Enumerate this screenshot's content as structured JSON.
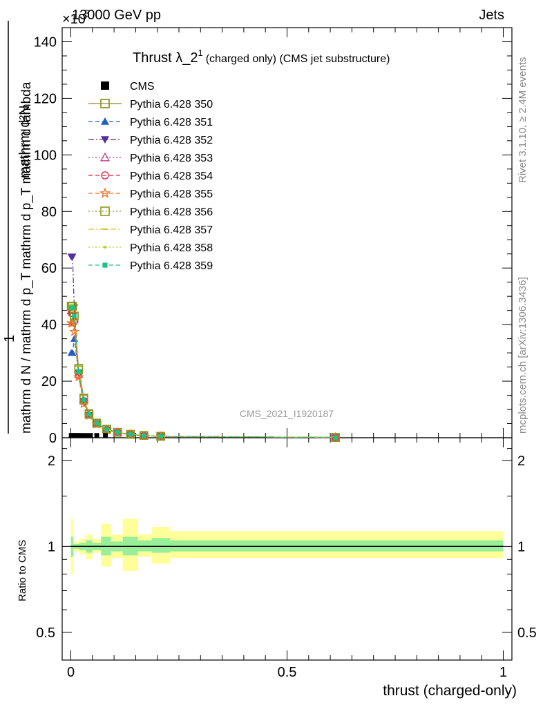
{
  "header": {
    "process": "13000 GeV pp",
    "category": "Jets",
    "exponent": "×10",
    "exponent_power": "3"
  },
  "plot_title": {
    "main": "Thrust λ_2",
    "superscript": "1",
    "detail": "(charged only) (CMS jet substructure)"
  },
  "ylabel_main": {
    "numerator": "mathrm d²N",
    "one": "1",
    "denominator": "mathrm d N / mathrm d p_T mathrm d p_T mathrm d lambda"
  },
  "ylabel_ratio": "Ratio to CMS",
  "xlabel": "thrust (charged-only)",
  "watermark": "CMS_2021_I1920187",
  "side_text": {
    "rivet": "Rivet 3.1.10, ≥ 2.4M events",
    "mcplots": "mcplots.cern.ch [arXiv:1306.3436]"
  },
  "legend": [
    {
      "label": "CMS",
      "color": "#000000",
      "marker": "square-filled",
      "line": "none"
    },
    {
      "label": "Pythia 6.428 350",
      "color": "#8b8b1a",
      "marker": "square-open",
      "line": "solid"
    },
    {
      "label": "Pythia 6.428 351",
      "color": "#1f5fbf",
      "marker": "triangle-up-filled",
      "line": "dashed"
    },
    {
      "label": "Pythia 6.428 352",
      "color": "#5a2ca0",
      "marker": "triangle-down-filled",
      "line": "dashdot"
    },
    {
      "label": "Pythia 6.428 353",
      "color": "#c0408a",
      "marker": "triangle-up-open",
      "line": "dotted"
    },
    {
      "label": "Pythia 6.428 354",
      "color": "#e0203a",
      "marker": "circle-open",
      "line": "dashed"
    },
    {
      "label": "Pythia 6.428 355",
      "color": "#f07020",
      "marker": "star-open",
      "line": "dashed"
    },
    {
      "label": "Pythia 6.428 356",
      "color": "#8b9a1a",
      "marker": "square-open",
      "line": "dotted"
    },
    {
      "label": "Pythia 6.428 357",
      "color": "#d8c020",
      "marker": "dash",
      "line": "dashdot"
    },
    {
      "label": "Pythia 6.428 358",
      "color": "#b8d020",
      "marker": "dot",
      "line": "dotted"
    },
    {
      "label": "Pythia 6.428 359",
      "color": "#20c08a",
      "marker": "square-filled-small",
      "line": "dashed"
    }
  ],
  "chart_data": [
    {
      "type": "line",
      "panel": "main",
      "xlim": [
        -0.02,
        1.02
      ],
      "ylim": [
        0,
        145000
      ],
      "y_scale_note": "×10^3",
      "y_ticks": [
        0,
        20000,
        40000,
        60000,
        80000,
        100000,
        120000,
        140000
      ],
      "y_tick_labels": [
        "0",
        "20",
        "40",
        "60",
        "80",
        "100",
        "120",
        "140"
      ],
      "cms": {
        "x": [
          0.001,
          0.004,
          0.008,
          0.013,
          0.018,
          0.025,
          0.035,
          0.045,
          0.06,
          0.08
        ],
        "y": [
          300,
          300,
          300,
          300,
          300,
          300,
          300,
          300,
          300,
          300
        ]
      },
      "x": [
        0.001,
        0.004,
        0.008,
        0.018,
        0.03,
        0.042,
        0.06,
        0.083,
        0.108,
        0.138,
        0.169,
        0.208,
        0.612
      ],
      "series": [
        {
          "name": "Pythia 6.428 350",
          "values": [
            46500,
            46500,
            43000,
            24500,
            14000,
            8500,
            5200,
            3000,
            1900,
            1200,
            800,
            500,
            100
          ]
        },
        {
          "name": "Pythia 6.428 351",
          "values": [
            30000,
            30000,
            35000,
            23000,
            13000,
            8000,
            5000,
            2900,
            1800,
            1100,
            750,
            480,
            100
          ]
        },
        {
          "name": "Pythia 6.428 352",
          "values": [
            64000,
            64000,
            46000,
            23000,
            13000,
            8000,
            5000,
            2900,
            1800,
            1100,
            750,
            480,
            100
          ]
        },
        {
          "name": "Pythia 6.428 353",
          "values": [
            45000,
            45000,
            42000,
            22500,
            13000,
            8000,
            5000,
            2900,
            1800,
            1100,
            750,
            480,
            100
          ]
        },
        {
          "name": "Pythia 6.428 354",
          "values": [
            44000,
            44000,
            41000,
            22000,
            13000,
            8000,
            5000,
            2900,
            1800,
            1100,
            750,
            480,
            100
          ]
        },
        {
          "name": "Pythia 6.428 355",
          "values": [
            40500,
            40500,
            37500,
            21500,
            12000,
            7800,
            4800,
            2800,
            1700,
            1100,
            750,
            480,
            100
          ]
        },
        {
          "name": "Pythia 6.428 356",
          "values": [
            46500,
            46500,
            43000,
            24000,
            13500,
            8300,
            5100,
            3000,
            1900,
            1200,
            800,
            500,
            100
          ]
        },
        {
          "name": "Pythia 6.428 357",
          "values": [
            46000,
            46000,
            42500,
            23500,
            13500,
            8200,
            5100,
            2950,
            1850,
            1150,
            780,
            490,
            100
          ]
        },
        {
          "name": "Pythia 6.428 358",
          "values": [
            47000,
            47000,
            43000,
            23500,
            13500,
            8200,
            5100,
            2950,
            1850,
            1150,
            780,
            490,
            100
          ]
        },
        {
          "name": "Pythia 6.428 359",
          "values": [
            46000,
            46000,
            43000,
            23500,
            13500,
            8300,
            5100,
            2950,
            1850,
            1150,
            780,
            490,
            100
          ]
        }
      ]
    },
    {
      "type": "area",
      "panel": "ratio",
      "xlim": [
        -0.02,
        1.02
      ],
      "ylim": [
        0.4,
        2.4
      ],
      "y_ticks": [
        0.5,
        1,
        2
      ],
      "y_tick_labels": [
        "0.5",
        "1",
        "2"
      ],
      "x_ticks": [
        0,
        0.5,
        1
      ],
      "x_tick_labels": [
        "0",
        "0.5",
        "1"
      ],
      "bins": [
        {
          "x0": 0.0,
          "x1": 0.006,
          "stat_lo": 0.92,
          "stat_hi": 1.08,
          "tot_lo": 0.8,
          "tot_hi": 1.25
        },
        {
          "x0": 0.006,
          "x1": 0.02,
          "stat_lo": 0.98,
          "stat_hi": 1.02,
          "tot_lo": 0.96,
          "tot_hi": 1.04
        },
        {
          "x0": 0.02,
          "x1": 0.035,
          "stat_lo": 0.97,
          "stat_hi": 1.03,
          "tot_lo": 0.94,
          "tot_hi": 1.06
        },
        {
          "x0": 0.035,
          "x1": 0.05,
          "stat_lo": 0.95,
          "stat_hi": 1.05,
          "tot_lo": 0.9,
          "tot_hi": 1.1
        },
        {
          "x0": 0.05,
          "x1": 0.07,
          "stat_lo": 0.97,
          "stat_hi": 1.03,
          "tot_lo": 0.95,
          "tot_hi": 1.06
        },
        {
          "x0": 0.07,
          "x1": 0.093,
          "stat_lo": 0.93,
          "stat_hi": 1.08,
          "tot_lo": 0.85,
          "tot_hi": 1.2
        },
        {
          "x0": 0.093,
          "x1": 0.12,
          "stat_lo": 0.96,
          "stat_hi": 1.04,
          "tot_lo": 0.91,
          "tot_hi": 1.1
        },
        {
          "x0": 0.12,
          "x1": 0.155,
          "stat_lo": 0.93,
          "stat_hi": 1.08,
          "tot_lo": 0.82,
          "tot_hi": 1.25
        },
        {
          "x0": 0.155,
          "x1": 0.187,
          "stat_lo": 0.96,
          "stat_hi": 1.05,
          "tot_lo": 0.92,
          "tot_hi": 1.1
        },
        {
          "x0": 0.187,
          "x1": 0.23,
          "stat_lo": 0.95,
          "stat_hi": 1.07,
          "tot_lo": 0.87,
          "tot_hi": 1.17
        },
        {
          "x0": 0.23,
          "x1": 1.0,
          "stat_lo": 0.96,
          "stat_hi": 1.05,
          "tot_lo": 0.91,
          "tot_hi": 1.13
        }
      ]
    }
  ]
}
